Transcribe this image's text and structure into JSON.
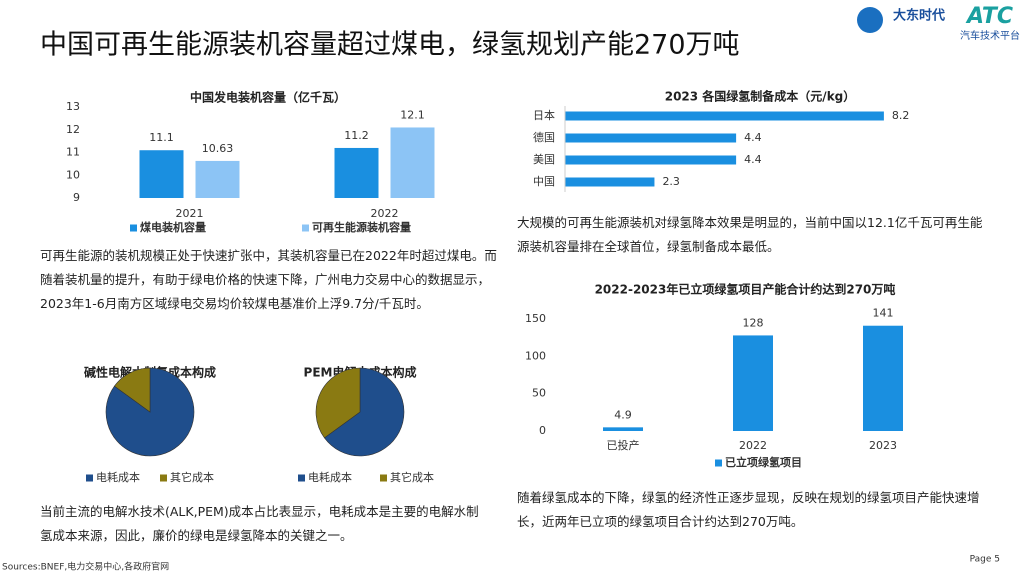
{
  "header": {
    "title": "中国可再生能源装机容量超过煤电，绿氢规划产能270万吨",
    "logos": [
      "大东时代",
      "ATC",
      "汽车技术平台"
    ]
  },
  "chart_data": [
    {
      "type": "bar",
      "title": "中国发电装机容量（亿千瓦）",
      "categories": [
        "2021",
        "2022"
      ],
      "series": [
        {
          "name": "煤电装机容量",
          "color": "#1a8fe0",
          "values": [
            11.1,
            11.2
          ]
        },
        {
          "name": "可再生能源装机容量",
          "color": "#8cc4f5",
          "values": [
            10.63,
            12.1
          ]
        }
      ],
      "ylim": [
        9,
        13
      ],
      "yticks": [
        9,
        10,
        11,
        12,
        13
      ],
      "grid": false
    },
    {
      "type": "barh",
      "title": "2023 各国绿氢制备成本（元/kg）",
      "categories": [
        "日本",
        "德国",
        "美国",
        "中国"
      ],
      "values": [
        8.2,
        4.4,
        4.4,
        2.3
      ],
      "color": "#1a8fe0",
      "xlim": [
        0,
        9
      ]
    },
    {
      "type": "pie",
      "title": "碱性电解水制氢成本构成",
      "categories": [
        "电耗成本",
        "其它成本"
      ],
      "values": [
        85,
        15
      ],
      "colors": [
        "#1f4e8c",
        "#8a7a12"
      ]
    },
    {
      "type": "pie",
      "title": "PEM电解水成本构成",
      "categories": [
        "电耗成本",
        "其它成本"
      ],
      "values": [
        65,
        35
      ],
      "colors": [
        "#1f4e8c",
        "#8a7a12"
      ]
    },
    {
      "type": "bar",
      "title": "2022-2023年已立项绿氢项目产能合计约达到270万吨",
      "categories": [
        "已投产",
        "2022",
        "2023"
      ],
      "series": [
        {
          "name": "已立项绿氢项目",
          "color": "#1a8fe0",
          "values": [
            4.9,
            128,
            141
          ]
        }
      ],
      "ylim": [
        0,
        150
      ],
      "yticks": [
        0,
        50,
        100,
        150
      ],
      "grid": false
    }
  ],
  "texts": [
    "可再生能源的装机规模正处于快速扩张中，其装机容量已在2022年时超过煤电。而随着装机量的提升，有助于绿电价格的快速下降，广州电力交易中心的数据显示，2023年1-6月南方区域绿电交易均价较煤电基准价上浮9.7分/千瓦时。",
    "大规模的可再生能源装机对绿氢降本效果是明显的，当前中国以12.1亿千瓦可再生能源装机容量排在全球首位，绿氢制备成本最低。",
    "随着绿氢成本的下降，绿氢的经济性正逐步显现，反映在规划的绿氢项目产能快速增长，近两年已立项的绿氢项目合计约达到270万吨。",
    "当前主流的电解水技术(ALK,PEM)成本占比表显示，电耗成本是主要的电解水制氢成本来源，因此，廉价的绿电是绿氢降本的关键之一。"
  ],
  "footer": {
    "sources": "Sources:BNEF,电力交易中心,各政府官网",
    "page": "Page 5"
  }
}
